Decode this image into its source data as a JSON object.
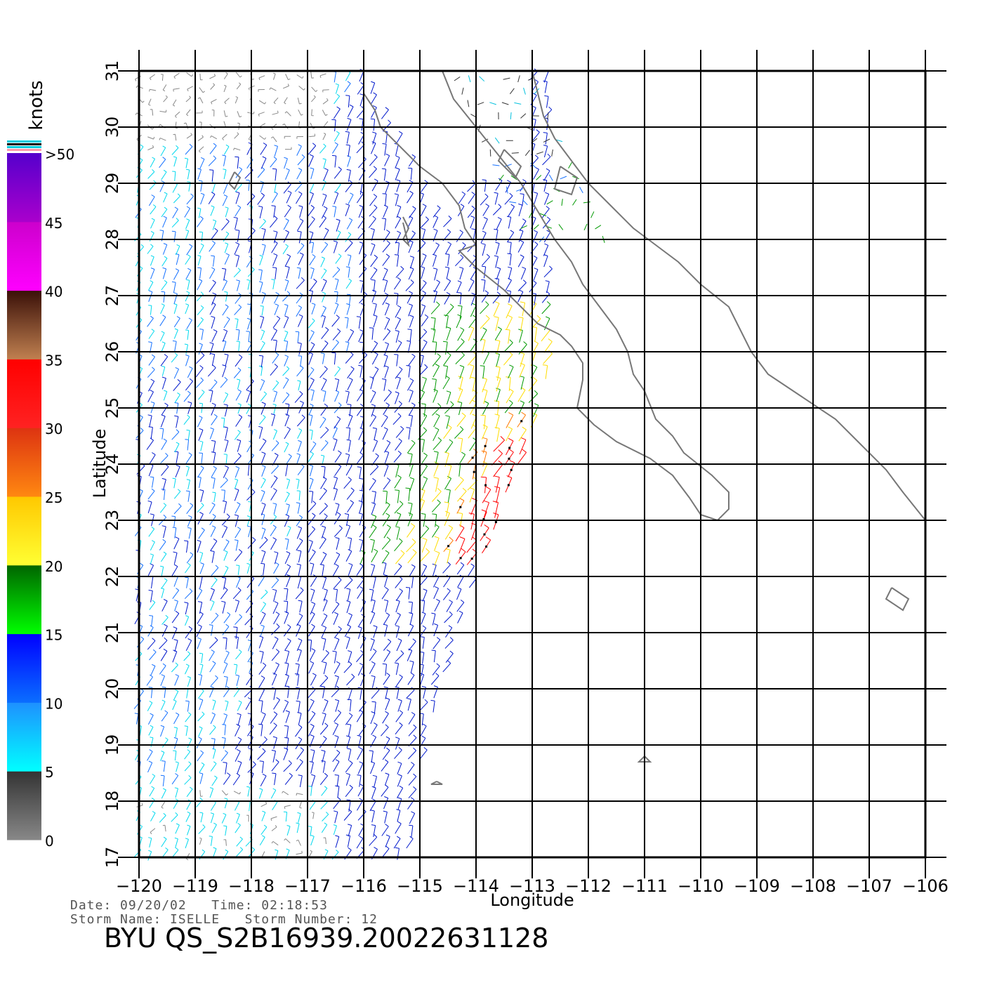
{
  "map": {
    "lon_range": [
      -120,
      -106
    ],
    "lat_range": [
      17,
      31
    ],
    "lon_ticks": [
      -120,
      -119,
      -118,
      -117,
      -116,
      -115,
      -114,
      -113,
      -112,
      -111,
      -110,
      -109,
      -108,
      -107,
      -106
    ],
    "lat_ticks": [
      17,
      18,
      19,
      20,
      21,
      22,
      23,
      24,
      25,
      26,
      27,
      28,
      29,
      30,
      31
    ],
    "xlabel": "Longitude",
    "ylabel": "Latitude",
    "coast_color": "#777777",
    "grid_color": "#000000"
  },
  "colorbar": {
    "unit": "knots",
    "tick_labels": [
      "0",
      "5",
      "10",
      "15",
      "20",
      "25",
      "30",
      "35",
      "40",
      "45",
      ">50"
    ],
    "segments": [
      {
        "from": 0,
        "to": 5,
        "top": "#333333",
        "bottom": "#888888"
      },
      {
        "from": 5,
        "to": 10,
        "top": "#1e90ff",
        "bottom": "#00ffff"
      },
      {
        "from": 10,
        "to": 15,
        "top": "#0000ff",
        "bottom": "#0a6eff"
      },
      {
        "from": 15,
        "to": 20,
        "top": "#006400",
        "bottom": "#00ff00"
      },
      {
        "from": 20,
        "to": 25,
        "top": "#ffc800",
        "bottom": "#ffff33"
      },
      {
        "from": 25,
        "to": 30,
        "top": "#dd3311",
        "bottom": "#ff8811"
      },
      {
        "from": 30,
        "to": 35,
        "top": "#ff0000",
        "bottom": "#ff2222"
      },
      {
        "from": 35,
        "to": 40,
        "top": "#3a1008",
        "bottom": "#c08050"
      },
      {
        "from": 40,
        "to": 45,
        "top": "#cc00cc",
        "bottom": "#ff00ff"
      },
      {
        "from": 45,
        "to": 50,
        "top": "#5500cc",
        "bottom": "#aa00cc"
      }
    ],
    "top_stripes": [
      "#00ccdd",
      "#000000",
      "#00ccdd",
      "#ff99aa"
    ]
  },
  "info": {
    "line1": "Date: 09/20/02   Time: 02:18:53",
    "line2": "Storm Name: ISELLE   Storm Number: 12",
    "title": "BYU  QS_S2B16939.20022631128"
  },
  "swath": {
    "description_free": true,
    "east_edge": [
      [
        -115.2,
        17.0
      ],
      [
        -114.9,
        19.0
      ],
      [
        -114.3,
        21.0
      ],
      [
        -113.7,
        22.8
      ],
      [
        -113.0,
        24.4
      ],
      [
        -112.6,
        26.0
      ]
    ],
    "speed_colors": [
      "#888888",
      "#00d8ee",
      "#1470ff",
      "#0018cc",
      "#009900",
      "#ffdd00",
      "#ff7700",
      "#ff0000"
    ]
  },
  "coastlines": [
    {
      "name": "baja-west",
      "points": [
        [
          -116.0,
          31.0
        ],
        [
          -116.0,
          30.6
        ],
        [
          -115.8,
          30.3
        ],
        [
          -115.7,
          30.0
        ],
        [
          -115.4,
          29.7
        ],
        [
          -115.0,
          29.3
        ],
        [
          -114.6,
          29.0
        ],
        [
          -114.3,
          28.6
        ],
        [
          -114.2,
          28.2
        ],
        [
          -114.0,
          27.9
        ],
        [
          -114.3,
          27.8
        ],
        [
          -114.0,
          27.5
        ],
        [
          -113.5,
          27.1
        ],
        [
          -113.2,
          26.8
        ],
        [
          -112.9,
          26.5
        ],
        [
          -112.5,
          26.3
        ],
        [
          -112.3,
          26.1
        ],
        [
          -112.1,
          25.8
        ],
        [
          -112.1,
          25.5
        ],
        [
          -112.2,
          25.0
        ],
        [
          -111.9,
          24.7
        ],
        [
          -111.5,
          24.4
        ],
        [
          -110.9,
          24.1
        ],
        [
          -110.5,
          23.8
        ],
        [
          -110.2,
          23.4
        ],
        [
          -110.0,
          23.1
        ],
        [
          -109.7,
          23.0
        ],
        [
          -109.5,
          23.2
        ],
        [
          -109.5,
          23.5
        ],
        [
          -109.8,
          23.8
        ],
        [
          -110.3,
          24.2
        ],
        [
          -110.5,
          24.5
        ],
        [
          -110.8,
          24.8
        ],
        [
          -111.0,
          25.3
        ],
        [
          -111.2,
          25.6
        ],
        [
          -111.3,
          26.0
        ],
        [
          -111.5,
          26.4
        ],
        [
          -111.8,
          26.8
        ],
        [
          -112.1,
          27.2
        ],
        [
          -112.3,
          27.6
        ],
        [
          -112.6,
          28.0
        ],
        [
          -112.9,
          28.5
        ],
        [
          -113.2,
          29.0
        ],
        [
          -113.6,
          29.5
        ],
        [
          -114.0,
          30.0
        ],
        [
          -114.4,
          30.5
        ],
        [
          -114.6,
          31.0
        ]
      ]
    },
    {
      "name": "mainland",
      "points": [
        [
          -113.0,
          31.0
        ],
        [
          -112.9,
          30.6
        ],
        [
          -112.8,
          30.2
        ],
        [
          -112.6,
          29.8
        ],
        [
          -112.3,
          29.4
        ],
        [
          -112.0,
          29.0
        ],
        [
          -111.6,
          28.6
        ],
        [
          -111.2,
          28.2
        ],
        [
          -110.8,
          27.9
        ],
        [
          -110.4,
          27.6
        ],
        [
          -110.0,
          27.2
        ],
        [
          -109.5,
          26.8
        ],
        [
          -109.3,
          26.4
        ],
        [
          -109.1,
          26.0
        ],
        [
          -108.8,
          25.6
        ],
        [
          -108.2,
          25.2
        ],
        [
          -107.6,
          24.8
        ],
        [
          -107.2,
          24.4
        ],
        [
          -106.7,
          23.9
        ],
        [
          -106.4,
          23.5
        ],
        [
          -106.0,
          23.0
        ]
      ]
    },
    {
      "name": "cedros",
      "points": [
        [
          -115.3,
          28.4
        ],
        [
          -115.2,
          28.2
        ],
        [
          -115.3,
          28.0
        ],
        [
          -115.2,
          27.9
        ],
        [
          -115.3,
          28.3
        ]
      ]
    },
    {
      "name": "guadalupe",
      "points": [
        [
          -118.3,
          29.2
        ],
        [
          -118.2,
          29.1
        ],
        [
          -118.3,
          28.9
        ],
        [
          -118.4,
          29.0
        ],
        [
          -118.3,
          29.2
        ]
      ]
    },
    {
      "name": "tiburon",
      "points": [
        [
          -112.5,
          29.3
        ],
        [
          -112.2,
          29.1
        ],
        [
          -112.3,
          28.8
        ],
        [
          -112.6,
          28.9
        ],
        [
          -112.5,
          29.3
        ]
      ]
    },
    {
      "name": "angel-guarda",
      "points": [
        [
          -113.5,
          29.6
        ],
        [
          -113.2,
          29.3
        ],
        [
          -113.3,
          29.1
        ],
        [
          -113.6,
          29.4
        ],
        [
          -113.5,
          29.6
        ]
      ]
    },
    {
      "name": "marias",
      "points": [
        [
          -106.6,
          21.8
        ],
        [
          -106.3,
          21.6
        ],
        [
          -106.4,
          21.4
        ],
        [
          -106.7,
          21.6
        ],
        [
          -106.6,
          21.8
        ]
      ]
    },
    {
      "name": "socorro",
      "points": [
        [
          -111.0,
          18.8
        ],
        [
          -110.9,
          18.7
        ],
        [
          -111.1,
          18.7
        ],
        [
          -111.0,
          18.8
        ]
      ]
    },
    {
      "name": "clarion",
      "points": [
        [
          -114.7,
          18.35
        ],
        [
          -114.6,
          18.3
        ],
        [
          -114.8,
          18.3
        ],
        [
          -114.7,
          18.35
        ]
      ]
    }
  ]
}
